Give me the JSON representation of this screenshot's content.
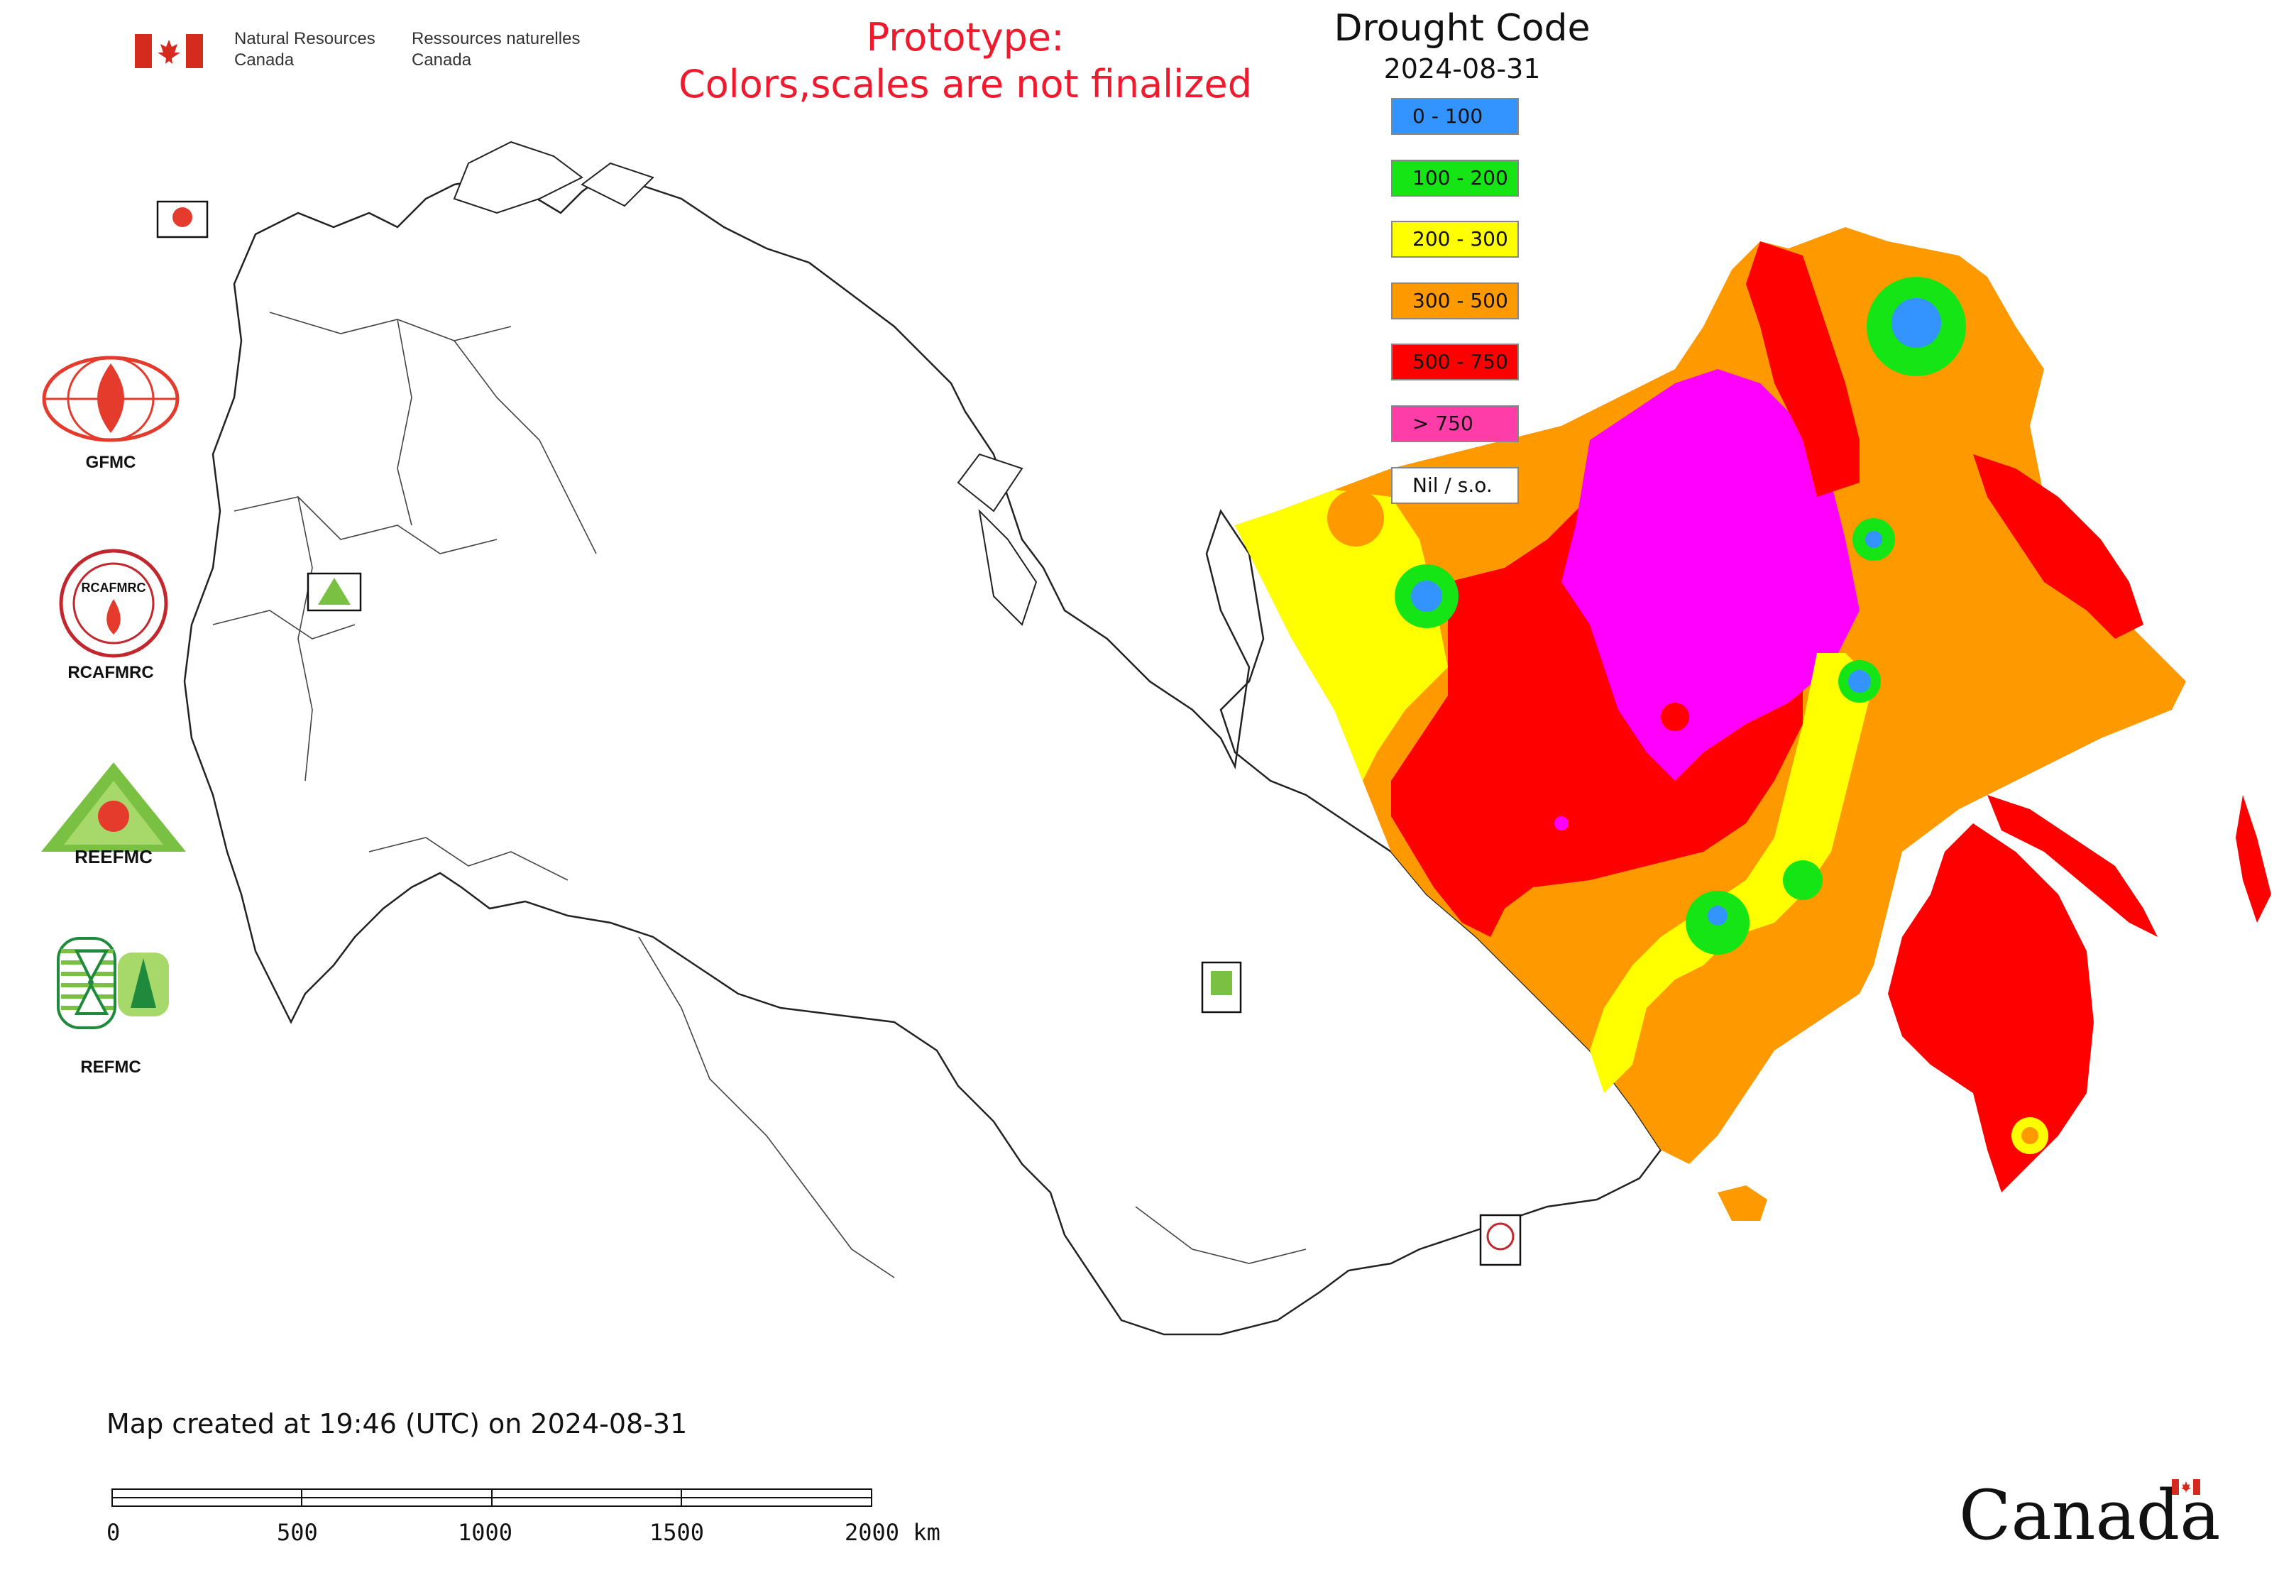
{
  "header": {
    "department_en": "Natural Resources\nCanada",
    "department_fr": "Ressources naturelles\nCanada",
    "prototype_notice_line1": "Prototype:",
    "prototype_notice_line2": "Colors,scales are not finalized"
  },
  "legend": {
    "title": "Drought Code",
    "date": "2024-08-31",
    "items": [
      {
        "label": "0 - 100",
        "color": "#3393ff"
      },
      {
        "label": "100 - 200",
        "color": "#15e515"
      },
      {
        "label": "200 - 300",
        "color": "#ffff00"
      },
      {
        "label": "300 - 500",
        "color": "#ff9900"
      },
      {
        "label": "500 - 750",
        "color": "#ff0000"
      },
      {
        "label": "> 750",
        "color": "#ff3da8"
      },
      {
        "label": "Nil / s.o.",
        "color": "#ffffff"
      }
    ]
  },
  "colors": {
    "dc_very_high": "#ff00ff",
    "outline": "#222222"
  },
  "left_logos": [
    {
      "label": "GFMC",
      "icon": "gfmc-logo"
    },
    {
      "label": "RCAFMRC",
      "icon": "rcafmrc-logo"
    },
    {
      "label": "",
      "icon": "reefmc-logo"
    },
    {
      "label": "REFMC",
      "icon": "refmc-logo"
    }
  ],
  "logo_wordmarks": {
    "reefmc": "REEFMC",
    "rcafmrc": "RCAFMRC",
    "gfmc_small": "GFMC",
    "refmc_small": "REFMC"
  },
  "footer": {
    "created": "Map created at 19:46 (UTC) on 2024-08-31",
    "scale_labels": [
      "0",
      "500",
      "1000",
      "1500",
      "2000 km"
    ],
    "wordmark": "Canada"
  }
}
